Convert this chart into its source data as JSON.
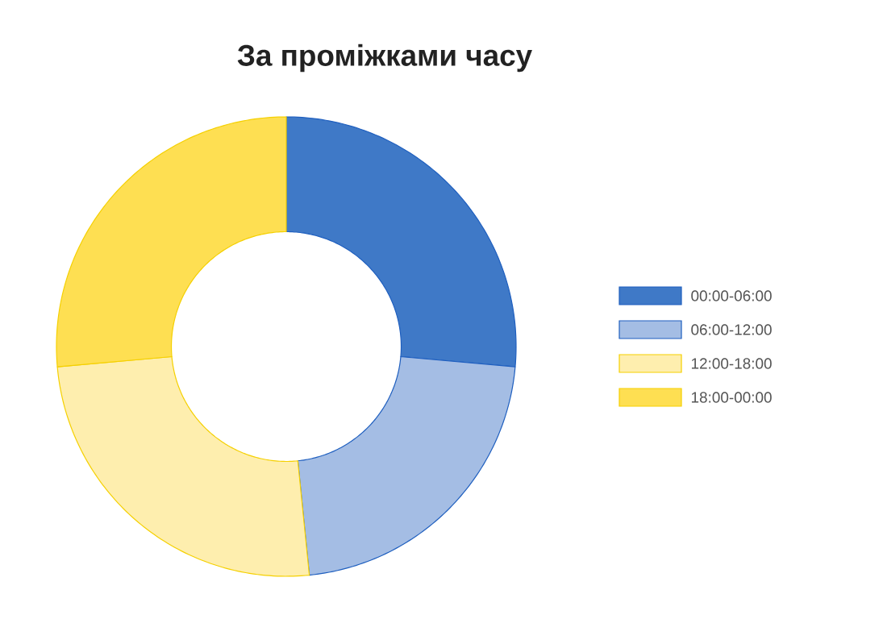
{
  "chart_data": {
    "type": "donut",
    "title": "За проміжками часу",
    "categories": [
      "00:00-06:00",
      "06:00-12:00",
      "12:00-18:00",
      "18:00-00:00"
    ],
    "values": [
      26.4,
      22.0,
      25.2,
      26.4
    ],
    "colors": [
      "#3f79c7",
      "#a4bde4",
      "#feeeae",
      "#fedf52"
    ],
    "legend": "right"
  }
}
